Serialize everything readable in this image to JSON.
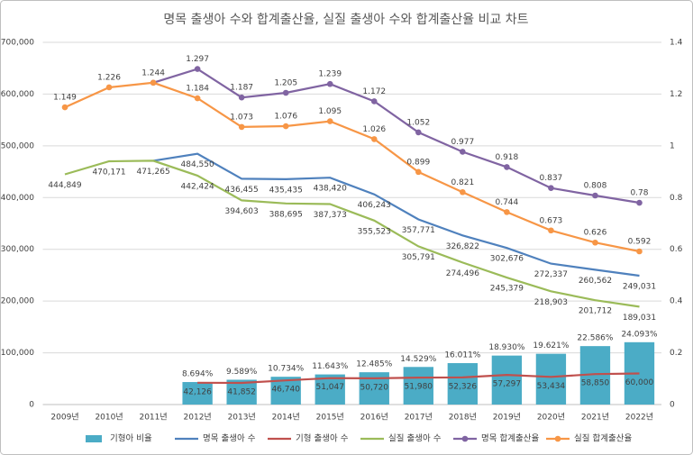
{
  "chart_data": {
    "type": "combo",
    "title": "명목 출생아 수와 합계출산율, 실질 출생아 수와 합계출산율 비교 차트",
    "categories": [
      "2009년",
      "2010년",
      "2011년",
      "2012년",
      "2013년",
      "2014년",
      "2015년",
      "2016년",
      "2017년",
      "2018년",
      "2019년",
      "2020년",
      "2021년",
      "2022년"
    ],
    "ylim": [
      0,
      700000
    ],
    "yticks": [
      {
        "value": 0,
        "label": "0"
      },
      {
        "value": 100000,
        "label": "100,000"
      },
      {
        "value": 200000,
        "label": "200,000"
      },
      {
        "value": 300000,
        "label": "300,000"
      },
      {
        "value": 400000,
        "label": "400,000"
      },
      {
        "value": 500000,
        "label": "500,000"
      },
      {
        "value": 600000,
        "label": "600,000"
      },
      {
        "value": 700000,
        "label": "700,000"
      }
    ],
    "y2lim": [
      0,
      1.4
    ],
    "y2ticks": [
      0,
      0.2,
      0.4,
      0.6,
      0.8,
      1,
      1.2,
      1.4
    ],
    "grid": true,
    "legend": "bottom",
    "series": [
      {
        "name": "기형아 비율",
        "type": "bar",
        "axis": "y2",
        "color": "#4bacc6",
        "values": [
          null,
          null,
          null,
          0.08694,
          0.09589,
          0.10734,
          0.11643,
          0.12485,
          0.14529,
          0.16011,
          0.1893,
          0.19621,
          0.22586,
          0.24093
        ],
        "value_labels": [
          null,
          null,
          null,
          "8.694%",
          "9.589%",
          "10.734%",
          "11.643%",
          "12.485%",
          "14.529%",
          "16.011%",
          "18.930%",
          "19.621%",
          "22.586%",
          "24.093%"
        ]
      },
      {
        "name": "명목 출생아 수",
        "type": "line",
        "color": "#4f81bd",
        "markers": false,
        "values": [
          null,
          null,
          471265,
          484550,
          436455,
          435435,
          438420,
          406243,
          357771,
          326822,
          302676,
          272337,
          260562,
          249031
        ],
        "value_labels": [
          null,
          null,
          null,
          "484,550",
          "436,455",
          "435,435",
          "438,420",
          "406,243",
          "357,771",
          "326,822",
          "302,676",
          "272,337",
          "260,562",
          "249,031"
        ]
      },
      {
        "name": "기형 출생아 수",
        "type": "line",
        "color": "#c0504d",
        "markers": false,
        "values": [
          null,
          null,
          null,
          42126,
          41852,
          46740,
          51047,
          50720,
          51980,
          52326,
          57297,
          53434,
          58850,
          60000
        ],
        "value_labels": [
          null,
          null,
          null,
          "42,126",
          "41,852",
          "46,740",
          "51,047",
          "50,720",
          "51,980",
          "52,326",
          "57,297",
          "53,434",
          "58,850",
          "60,000"
        ]
      },
      {
        "name": "실질 출생아 수",
        "type": "line",
        "color": "#9bbb59",
        "markers": false,
        "values": [
          444849,
          470171,
          471265,
          442424,
          394603,
          388695,
          387373,
          355523,
          305791,
          274496,
          245379,
          218903,
          201712,
          189031
        ],
        "value_labels": [
          "444,849",
          "470,171",
          "471,265",
          "442,424",
          "394,603",
          "388,695",
          "387,373",
          "355,523",
          "305,791",
          "274,496",
          "245,379",
          "218,903",
          "201,712",
          "189,031"
        ]
      },
      {
        "name": "명목 합계출산율",
        "type": "line",
        "axis": "y2",
        "color": "#8064a2",
        "markers": true,
        "values": [
          null,
          null,
          1.244,
          1.297,
          1.187,
          1.205,
          1.239,
          1.172,
          1.052,
          0.977,
          0.918,
          0.837,
          0.808,
          0.78
        ],
        "value_labels": [
          null,
          null,
          "1.244",
          "1.297",
          "1.187",
          "1.205",
          "1.239",
          "1.172",
          "1.052",
          "0.977",
          "0.918",
          "0.837",
          "0.808",
          "0.78"
        ]
      },
      {
        "name": "실질 합계출산율",
        "type": "line",
        "axis": "y2",
        "color": "#f79646",
        "markers": true,
        "values": [
          1.149,
          1.226,
          1.244,
          1.184,
          1.073,
          1.076,
          1.095,
          1.026,
          0.899,
          0.821,
          0.744,
          0.673,
          0.626,
          0.592
        ],
        "value_labels": [
          "1.149",
          "1.226",
          null,
          "1.184",
          "1.073",
          "1.076",
          "1.095",
          "1.026",
          "0.899",
          "0.821",
          "0.744",
          "0.673",
          "0.626",
          "0.592"
        ]
      }
    ]
  }
}
